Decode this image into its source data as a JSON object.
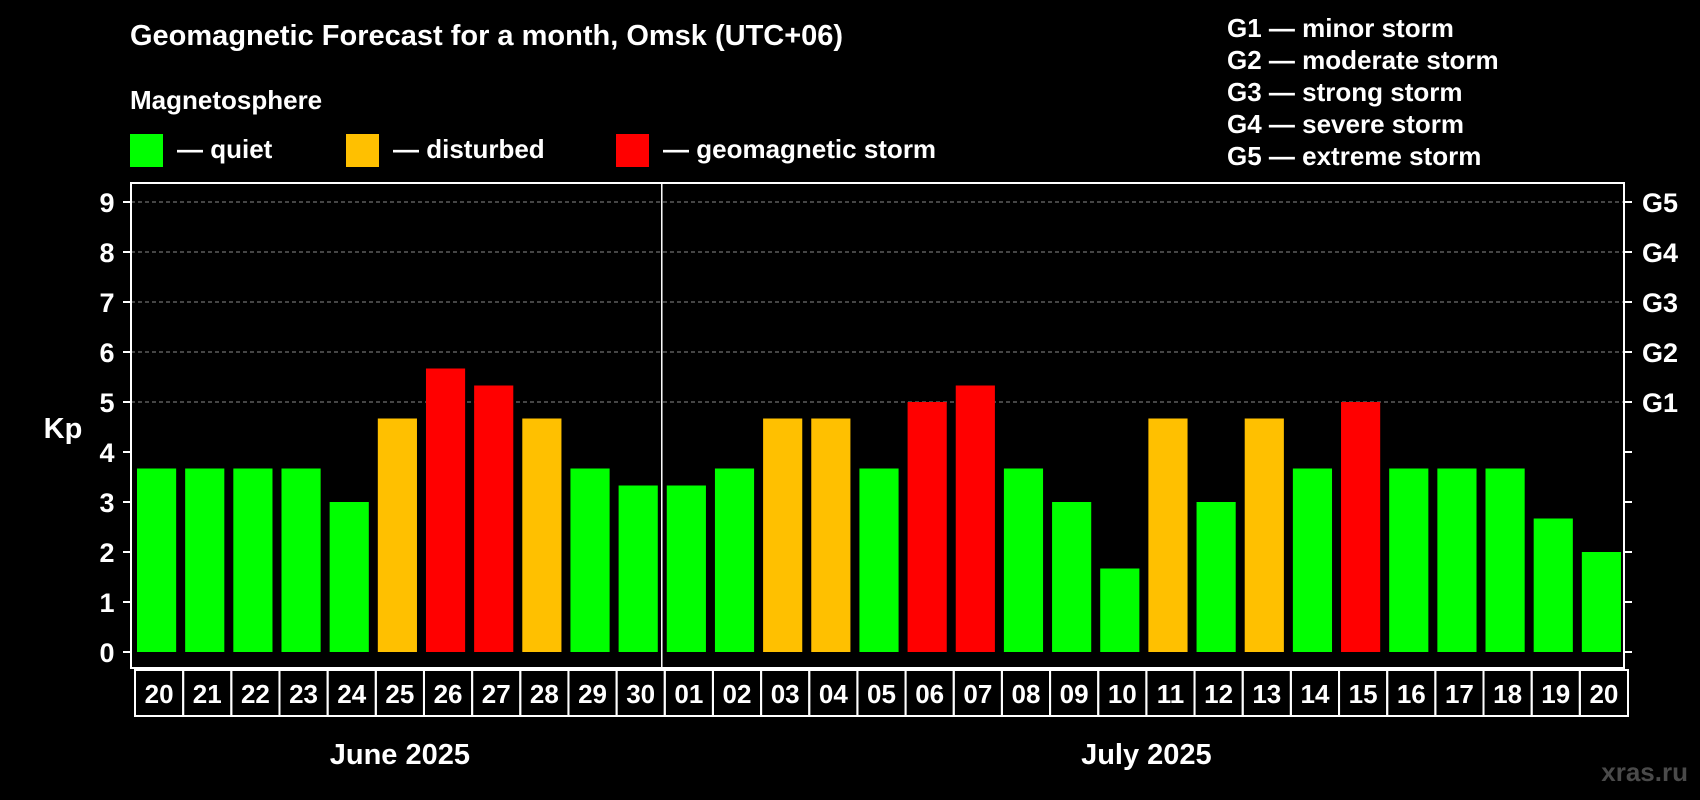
{
  "title": "Geomagnetic Forecast for a month, Omsk (UTC+06)",
  "legend": {
    "heading": "Magnetosphere",
    "items": [
      {
        "label": "— quiet",
        "color": "#00ff00"
      },
      {
        "label": "— disturbed",
        "color": "#ffc000"
      },
      {
        "label": "— geomagnetic storm",
        "color": "#ff0000"
      }
    ]
  },
  "storm_scale": [
    "G1 — minor storm",
    "G2 — moderate storm",
    "G3 — strong storm",
    "G4 — severe storm",
    "G5 — extreme storm"
  ],
  "watermark": "xras.ru",
  "chart_data": {
    "type": "bar",
    "title": "Geomagnetic Forecast for a month, Omsk (UTC+06)",
    "ylabel": "Kp",
    "ylim": [
      0,
      9
    ],
    "yticks": [
      0,
      1,
      2,
      3,
      4,
      5,
      6,
      7,
      8,
      9
    ],
    "right_ticks": [
      {
        "kp": 5,
        "label": "G1"
      },
      {
        "kp": 6,
        "label": "G2"
      },
      {
        "kp": 7,
        "label": "G3"
      },
      {
        "kp": 8,
        "label": "G4"
      },
      {
        "kp": 9,
        "label": "G5"
      }
    ],
    "months": [
      {
        "label": "June 2025",
        "count": 11
      },
      {
        "label": "July 2025",
        "count": 20
      }
    ],
    "categories": [
      "20",
      "21",
      "22",
      "23",
      "24",
      "25",
      "26",
      "27",
      "28",
      "29",
      "30",
      "01",
      "02",
      "03",
      "04",
      "05",
      "06",
      "07",
      "08",
      "09",
      "10",
      "11",
      "12",
      "13",
      "14",
      "15",
      "16",
      "17",
      "18",
      "19",
      "20"
    ],
    "values": [
      3.67,
      3.67,
      3.67,
      3.67,
      3.0,
      4.67,
      5.67,
      5.33,
      4.67,
      3.67,
      3.33,
      3.33,
      3.67,
      4.67,
      4.67,
      3.67,
      5.0,
      5.33,
      3.67,
      3.0,
      1.67,
      4.67,
      3.0,
      4.67,
      3.67,
      5.0,
      3.67,
      3.67,
      3.67,
      2.67,
      2.0
    ],
    "status": [
      "quiet",
      "quiet",
      "quiet",
      "quiet",
      "quiet",
      "disturbed",
      "storm",
      "storm",
      "disturbed",
      "quiet",
      "quiet",
      "quiet",
      "quiet",
      "disturbed",
      "disturbed",
      "quiet",
      "storm",
      "storm",
      "quiet",
      "quiet",
      "quiet",
      "disturbed",
      "quiet",
      "disturbed",
      "quiet",
      "storm",
      "quiet",
      "quiet",
      "quiet",
      "quiet",
      "quiet"
    ],
    "colors": {
      "quiet": "#00ff00",
      "disturbed": "#ffc000",
      "storm": "#ff0000"
    }
  }
}
